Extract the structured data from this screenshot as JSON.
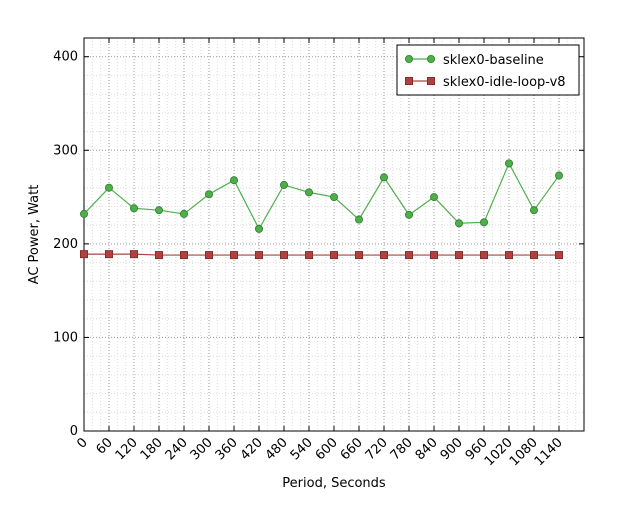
{
  "chart_data": {
    "type": "line",
    "xlabel": "Period, Seconds",
    "ylabel": "AC Power, Watt",
    "xlim": [
      0,
      1200
    ],
    "ylim": [
      0,
      420
    ],
    "xticks": [
      0,
      60,
      120,
      180,
      240,
      300,
      360,
      420,
      480,
      540,
      600,
      660,
      720,
      780,
      840,
      900,
      960,
      1020,
      1080,
      1140
    ],
    "yticks": [
      0,
      100,
      200,
      300,
      400
    ],
    "x": [
      0,
      60,
      120,
      180,
      240,
      300,
      360,
      420,
      480,
      540,
      600,
      660,
      720,
      780,
      840,
      900,
      960,
      1020,
      1080,
      1140
    ],
    "grid": true,
    "legend_position": "top-right",
    "series": [
      {
        "name": "sklex0-baseline",
        "marker": "circle",
        "color": "#4daf4a",
        "values": [
          232,
          260,
          238,
          236,
          232,
          253,
          268,
          216,
          263,
          255,
          250,
          226,
          271,
          231,
          250,
          222,
          223,
          286,
          236,
          273
        ]
      },
      {
        "name": "sklex0-idle-loop-v8",
        "marker": "square",
        "color": "#b0413e",
        "values": [
          189,
          189,
          189,
          188,
          188,
          188,
          188,
          188,
          188,
          188,
          188,
          188,
          188,
          188,
          188,
          188,
          188,
          188,
          188,
          188
        ]
      }
    ]
  }
}
